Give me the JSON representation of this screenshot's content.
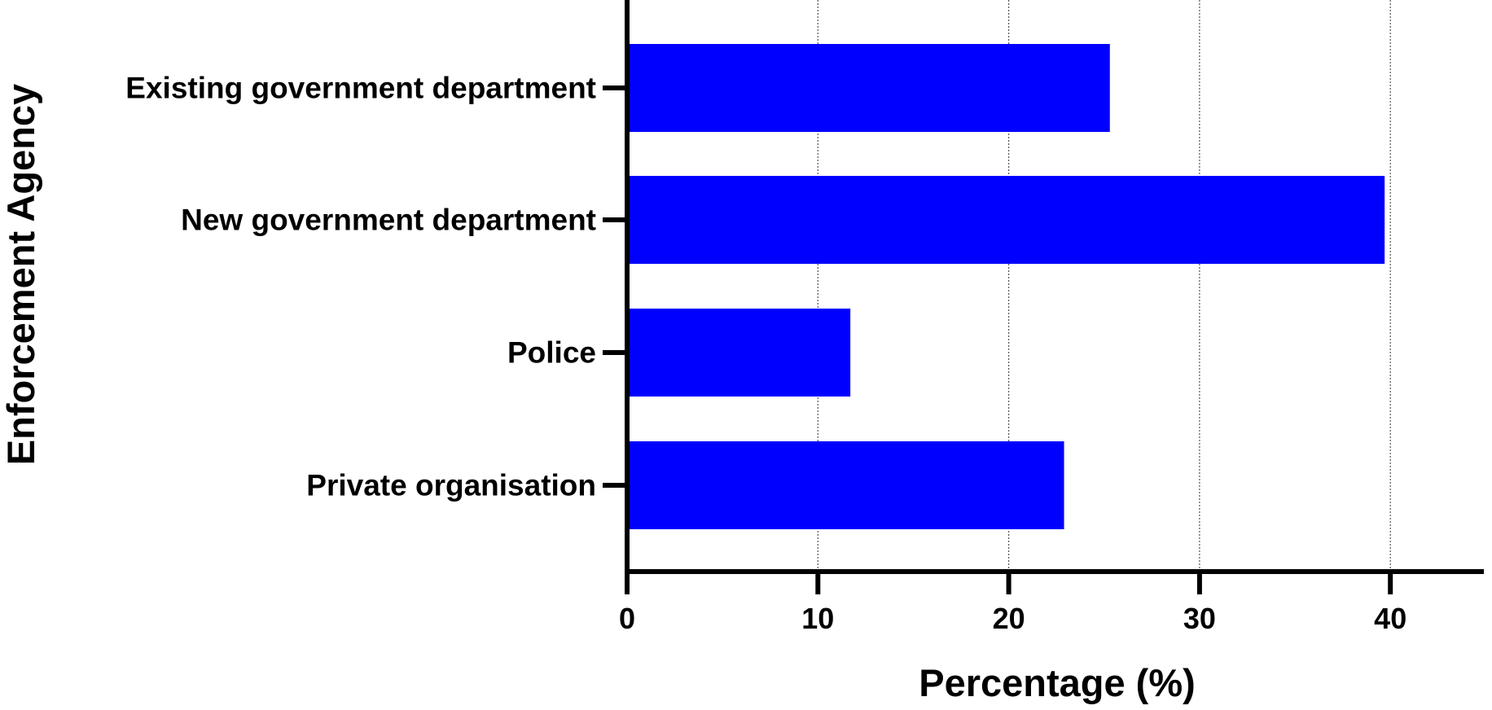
{
  "chart_data": {
    "type": "bar",
    "orientation": "horizontal",
    "categories": [
      "Existing government department",
      "New government department",
      "Police",
      "Private organisation"
    ],
    "values": [
      25.3,
      39.7,
      11.7,
      22.9
    ],
    "xlabel": "Percentage (%)",
    "ylabel": "Enforcement Agency",
    "xlim": [
      0,
      45
    ],
    "xticks": [
      "0",
      "10",
      "20",
      "30",
      "40"
    ],
    "xtick_values": [
      0,
      10,
      20,
      30,
      40
    ],
    "grid": "vertical dotted",
    "legend": "none",
    "bar_color": "#0000ff",
    "axis_color": "#000000"
  }
}
